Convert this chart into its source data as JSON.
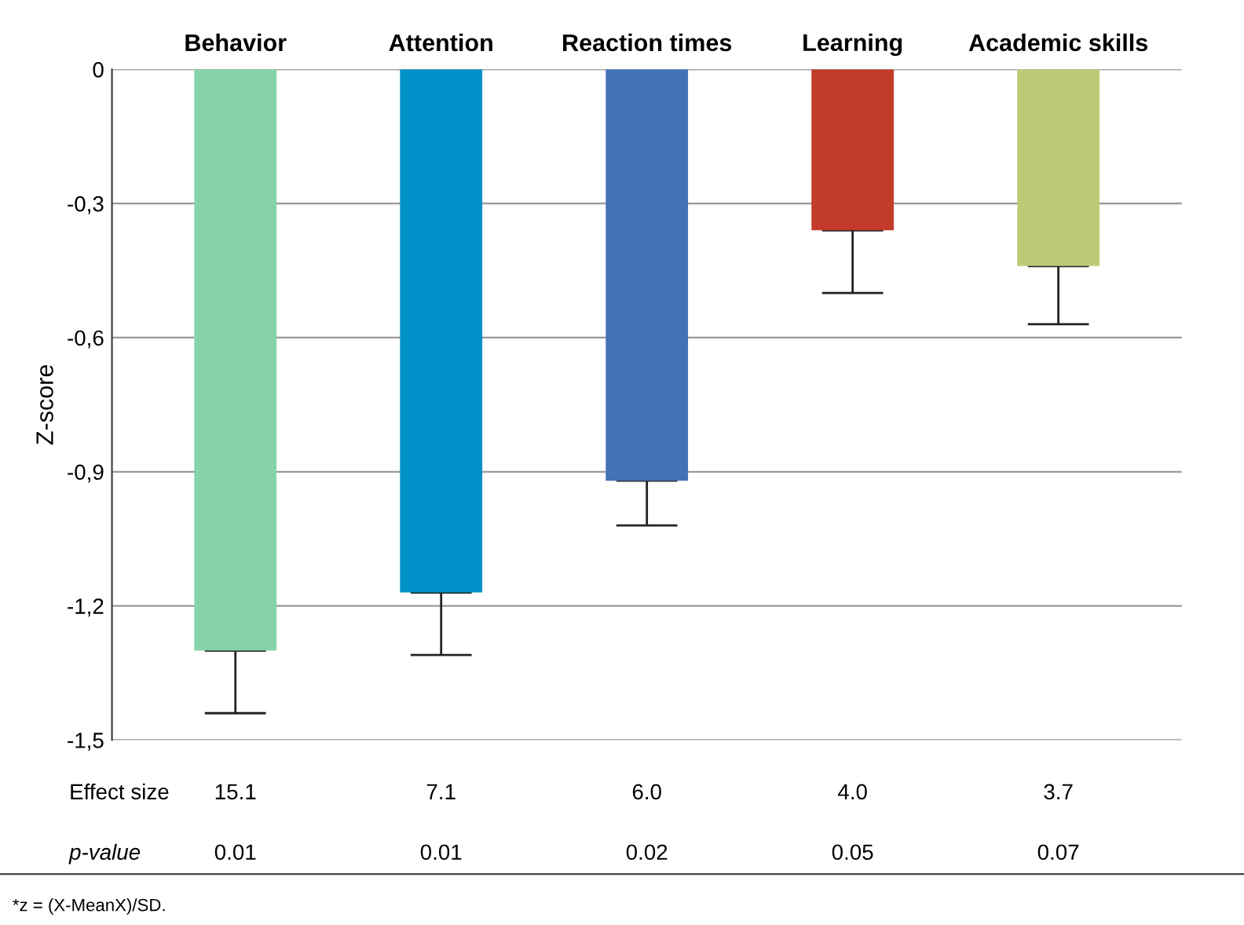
{
  "chart_data": {
    "type": "bar",
    "ylabel": "Z-score",
    "categories": [
      "Behavior",
      "Attention",
      "Reaction times",
      "Learning",
      "Academic skills"
    ],
    "values": [
      -1.3,
      -1.17,
      -0.92,
      -0.36,
      -0.44
    ],
    "colors": [
      "#86d3a8",
      "#0091c8",
      "#4472b8",
      "#c23b2b",
      "#bccb78"
    ],
    "errors": [
      [
        -1.44,
        -1.3
      ],
      [
        -1.31,
        -1.17
      ],
      [
        -1.02,
        -0.92
      ],
      [
        -0.5,
        -0.36
      ],
      [
        -0.57,
        -0.44
      ]
    ],
    "ylim": [
      -1.5,
      0
    ],
    "yticks": [
      {
        "value": 0,
        "label": "0"
      },
      {
        "value": -0.3,
        "label": "-0,3"
      },
      {
        "value": -0.6,
        "label": "-0,6"
      },
      {
        "value": -0.9,
        "label": "-0,9"
      },
      {
        "value": -1.2,
        "label": "-1,2"
      },
      {
        "value": -1.5,
        "label": "-1,5"
      }
    ],
    "grid": "y",
    "annotations": [
      "Effect size",
      "15.1",
      "7.1",
      "6.0",
      "4.0",
      "3.7",
      "p-value",
      "0.01",
      "0.01",
      "0.02",
      "0.05",
      "0.07",
      "*z = (X-MeanX)/SD."
    ]
  }
}
